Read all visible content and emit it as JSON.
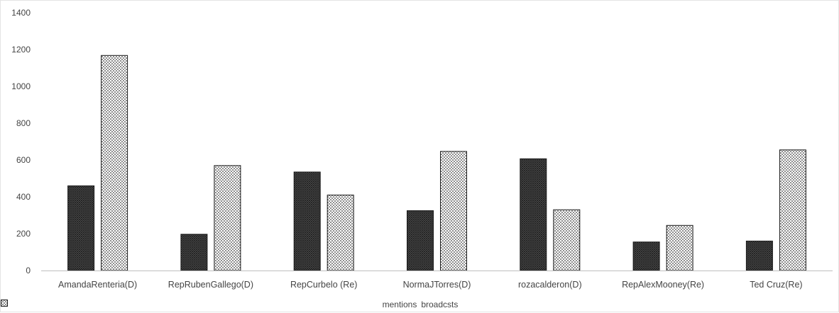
{
  "chart_data": {
    "type": "bar",
    "title": "",
    "xlabel": "",
    "ylabel": "",
    "categories": [
      "AmandaRenteria(D)",
      "RepRubenGallego(D)",
      "RepCurbelo (Re)",
      "NormaJTorres(D)",
      "rozacalderon(D)",
      "RepAlexMooney(Re)",
      "Ted Cruz(Re)"
    ],
    "series": [
      {
        "name": "mentions",
        "values": [
          460,
          197,
          535,
          325,
          607,
          155,
          160
        ],
        "pattern": "dense-cross-hatch",
        "color": "#3a3a3a"
      },
      {
        "name": "broadcsts",
        "values": [
          1168,
          570,
          410,
          647,
          330,
          245,
          655
        ],
        "pattern": "dotted",
        "color": "#c8c8c8"
      }
    ],
    "ylim": [
      0,
      1400
    ],
    "yticks": [
      0,
      200,
      400,
      600,
      800,
      1000,
      1200,
      1400
    ],
    "grid": false,
    "legend_position": "bottom-center"
  }
}
